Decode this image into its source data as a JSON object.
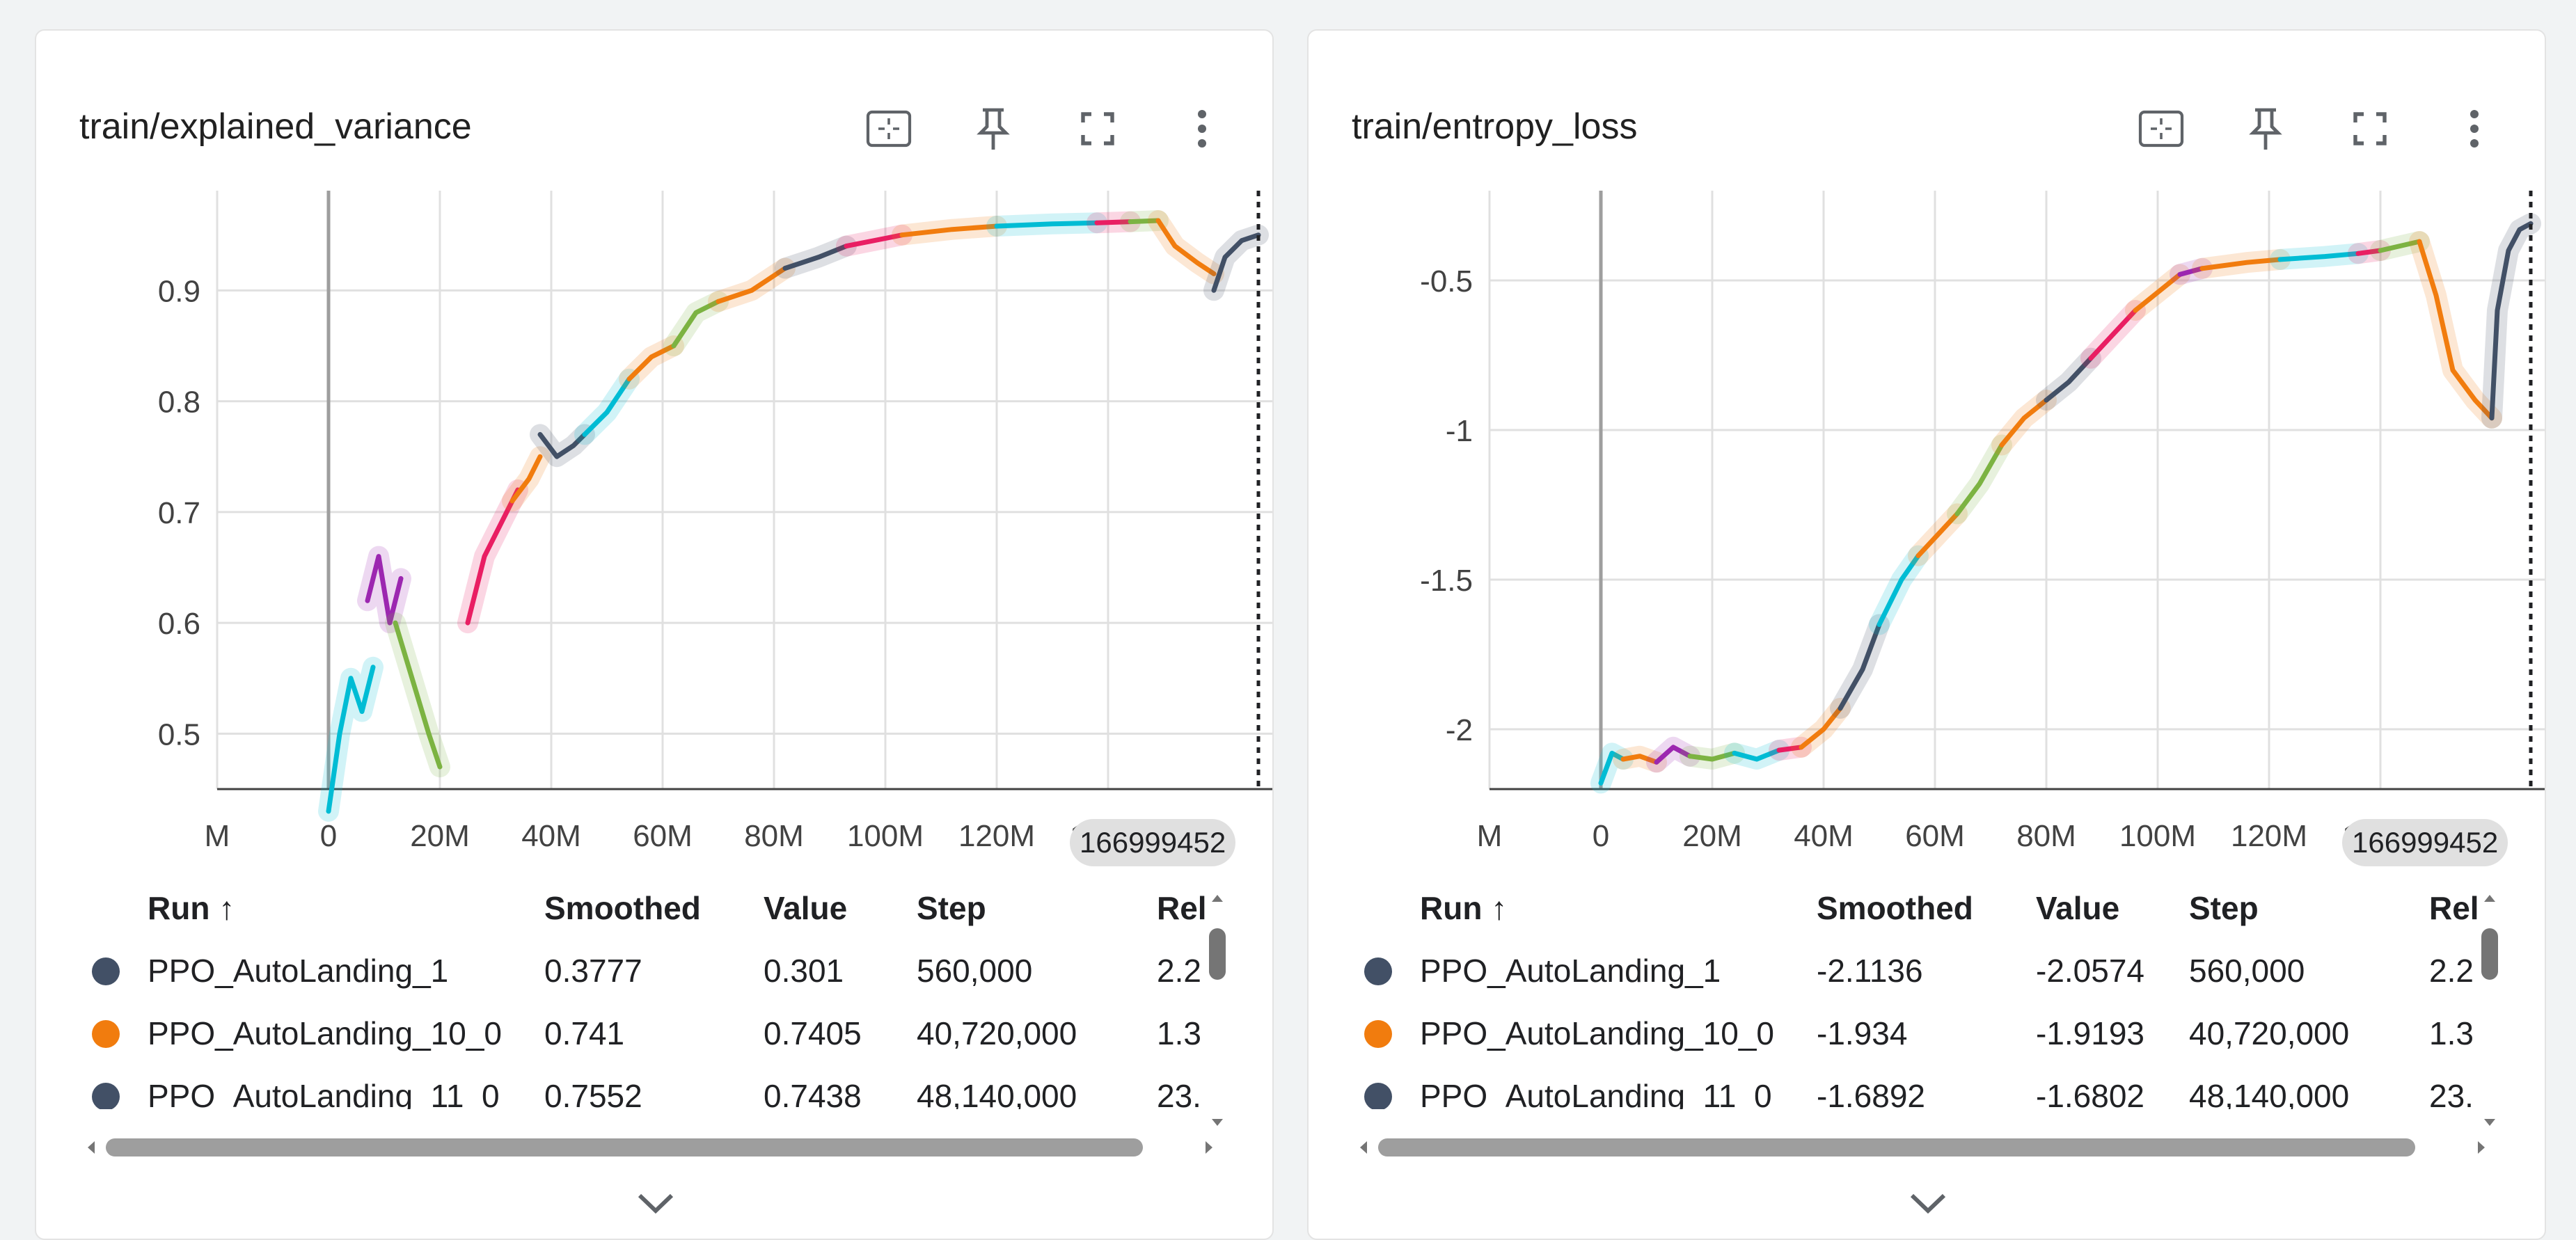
{
  "panels": [
    {
      "id": "left",
      "title": "train/explained_variance",
      "x_ticks": [
        {
          "v": -20,
          "label": "M"
        },
        {
          "v": 0,
          "label": "0"
        },
        {
          "v": 20,
          "label": "20M"
        },
        {
          "v": 40,
          "label": "40M"
        },
        {
          "v": 60,
          "label": "60M"
        },
        {
          "v": 80,
          "label": "80M"
        },
        {
          "v": 100,
          "label": "100M"
        },
        {
          "v": 120,
          "label": "120M"
        },
        {
          "v": 140,
          "label": "140M"
        }
      ],
      "y_ticks": [
        {
          "v": 0.5,
          "label": "0.5"
        },
        {
          "v": 0.6,
          "label": "0.6"
        },
        {
          "v": 0.7,
          "label": "0.7"
        },
        {
          "v": 0.8,
          "label": "0.8"
        },
        {
          "v": 0.9,
          "label": "0.9"
        }
      ],
      "cursor_step_label": "166999452",
      "legend": {
        "headers": {
          "run": "Run ↑",
          "smoothed": "Smoothed",
          "value": "Value",
          "step": "Step",
          "rel": "Rel"
        },
        "rows": [
          {
            "run": "PPO_AutoLanding_1",
            "smoothed": "0.3777",
            "value": "0.301",
            "step": "560,000",
            "rel": "2.2",
            "color": "#425066"
          },
          {
            "run": "PPO_AutoLanding_10_0",
            "smoothed": "0.741",
            "value": "0.7405",
            "step": "40,720,000",
            "rel": "1.3",
            "color": "#f17c0e"
          },
          {
            "run": "PPO_AutoLanding_11_0",
            "smoothed": "0.7552",
            "value": "0.7438",
            "step": "48,140,000",
            "rel": "23.",
            "color": "#425066"
          }
        ]
      }
    },
    {
      "id": "right",
      "title": "train/entropy_loss",
      "x_ticks": [
        {
          "v": -20,
          "label": "M"
        },
        {
          "v": 0,
          "label": "0"
        },
        {
          "v": 20,
          "label": "20M"
        },
        {
          "v": 40,
          "label": "40M"
        },
        {
          "v": 60,
          "label": "60M"
        },
        {
          "v": 80,
          "label": "80M"
        },
        {
          "v": 100,
          "label": "100M"
        },
        {
          "v": 120,
          "label": "120M"
        },
        {
          "v": 140,
          "label": "140M"
        }
      ],
      "y_ticks": [
        {
          "v": -2,
          "label": "-2"
        },
        {
          "v": -1.5,
          "label": "-1.5"
        },
        {
          "v": -1,
          "label": "-1"
        },
        {
          "v": -0.5,
          "label": "-0.5"
        }
      ],
      "cursor_step_label": "166999452",
      "legend": {
        "headers": {
          "run": "Run ↑",
          "smoothed": "Smoothed",
          "value": "Value",
          "step": "Step",
          "rel": "Rel"
        },
        "rows": [
          {
            "run": "PPO_AutoLanding_1",
            "smoothed": "-2.1136",
            "value": "-2.0574",
            "step": "560,000",
            "rel": "2.2",
            "color": "#425066"
          },
          {
            "run": "PPO_AutoLanding_10_0",
            "smoothed": "-1.934",
            "value": "-1.9193",
            "step": "40,720,000",
            "rel": "1.3",
            "color": "#f17c0e"
          },
          {
            "run": "PPO_AutoLanding_11_0",
            "smoothed": "-1.6892",
            "value": "-1.6802",
            "step": "48,140,000",
            "rel": "23.",
            "color": "#425066"
          }
        ]
      }
    }
  ],
  "chart_data": [
    {
      "type": "line",
      "title": "train/explained_variance",
      "xlabel": "",
      "ylabel": "",
      "xlim": [
        -20,
        170
      ],
      "ylim": [
        0.45,
        0.99
      ],
      "grid": true,
      "cursor_x": 166.999452,
      "series": [
        {
          "color": "#00bcd4",
          "x": [
            0,
            2,
            4,
            6,
            8
          ],
          "y": [
            0.43,
            0.5,
            0.55,
            0.52,
            0.56
          ]
        },
        {
          "color": "#9c27b0",
          "x": [
            7,
            9,
            11,
            13
          ],
          "y": [
            0.62,
            0.66,
            0.6,
            0.64
          ]
        },
        {
          "color": "#7cb342",
          "x": [
            12,
            15,
            18,
            20
          ],
          "y": [
            0.6,
            0.55,
            0.5,
            0.47
          ]
        },
        {
          "color": "#e91e63",
          "x": [
            25,
            28,
            31,
            34
          ],
          "y": [
            0.6,
            0.66,
            0.69,
            0.72
          ]
        },
        {
          "color": "#f17c0e",
          "x": [
            33,
            36,
            38
          ],
          "y": [
            0.71,
            0.73,
            0.75
          ]
        },
        {
          "color": "#425066",
          "x": [
            38,
            41,
            44,
            46
          ],
          "y": [
            0.77,
            0.75,
            0.76,
            0.77
          ]
        },
        {
          "color": "#00bcd4",
          "x": [
            46,
            50,
            54
          ],
          "y": [
            0.77,
            0.79,
            0.82
          ]
        },
        {
          "color": "#f17c0e",
          "x": [
            54,
            58,
            62
          ],
          "y": [
            0.82,
            0.84,
            0.85
          ]
        },
        {
          "color": "#7cb342",
          "x": [
            62,
            66,
            70
          ],
          "y": [
            0.85,
            0.88,
            0.89
          ]
        },
        {
          "color": "#f17c0e",
          "x": [
            70,
            76,
            82
          ],
          "y": [
            0.89,
            0.9,
            0.92
          ]
        },
        {
          "color": "#425066",
          "x": [
            82,
            88,
            93
          ],
          "y": [
            0.92,
            0.93,
            0.94
          ]
        },
        {
          "color": "#e91e63",
          "x": [
            93,
            98,
            103
          ],
          "y": [
            0.94,
            0.945,
            0.95
          ]
        },
        {
          "color": "#f17c0e",
          "x": [
            103,
            112,
            120
          ],
          "y": [
            0.95,
            0.955,
            0.958
          ]
        },
        {
          "color": "#00bcd4",
          "x": [
            120,
            130,
            138
          ],
          "y": [
            0.958,
            0.96,
            0.961
          ]
        },
        {
          "color": "#e91e63",
          "x": [
            138,
            144
          ],
          "y": [
            0.961,
            0.962
          ]
        },
        {
          "color": "#7cb342",
          "x": [
            144,
            149
          ],
          "y": [
            0.962,
            0.963
          ]
        },
        {
          "color": "#f17c0e",
          "x": [
            149,
            152,
            156,
            159
          ],
          "y": [
            0.963,
            0.94,
            0.925,
            0.915
          ]
        },
        {
          "color": "#425066",
          "x": [
            159,
            161,
            164,
            167
          ],
          "y": [
            0.9,
            0.93,
            0.945,
            0.95
          ]
        }
      ]
    },
    {
      "type": "line",
      "title": "train/entropy_loss",
      "xlabel": "",
      "ylabel": "",
      "xlim": [
        -20,
        170
      ],
      "ylim": [
        -2.2,
        -0.2
      ],
      "grid": true,
      "cursor_x": 166.999452,
      "series": [
        {
          "color": "#00bcd4",
          "x": [
            0,
            2,
            4
          ],
          "y": [
            -2.18,
            -2.08,
            -2.1
          ]
        },
        {
          "color": "#f17c0e",
          "x": [
            4,
            7,
            10
          ],
          "y": [
            -2.1,
            -2.09,
            -2.11
          ]
        },
        {
          "color": "#9c27b0",
          "x": [
            10,
            13,
            16
          ],
          "y": [
            -2.11,
            -2.06,
            -2.09
          ]
        },
        {
          "color": "#7cb342",
          "x": [
            16,
            20,
            24
          ],
          "y": [
            -2.09,
            -2.1,
            -2.08
          ]
        },
        {
          "color": "#00bcd4",
          "x": [
            24,
            28,
            32
          ],
          "y": [
            -2.08,
            -2.1,
            -2.07
          ]
        },
        {
          "color": "#e91e63",
          "x": [
            32,
            36
          ],
          "y": [
            -2.07,
            -2.06
          ]
        },
        {
          "color": "#f17c0e",
          "x": [
            36,
            40,
            43
          ],
          "y": [
            -2.06,
            -2.0,
            -1.93
          ]
        },
        {
          "color": "#425066",
          "x": [
            43,
            47,
            50
          ],
          "y": [
            -1.93,
            -1.8,
            -1.65
          ]
        },
        {
          "color": "#00bcd4",
          "x": [
            50,
            54,
            57
          ],
          "y": [
            -1.65,
            -1.5,
            -1.42
          ]
        },
        {
          "color": "#f17c0e",
          "x": [
            57,
            61,
            64
          ],
          "y": [
            -1.42,
            -1.34,
            -1.28
          ]
        },
        {
          "color": "#7cb342",
          "x": [
            64,
            68,
            72
          ],
          "y": [
            -1.28,
            -1.18,
            -1.05
          ]
        },
        {
          "color": "#f17c0e",
          "x": [
            72,
            76,
            80
          ],
          "y": [
            -1.05,
            -0.96,
            -0.9
          ]
        },
        {
          "color": "#425066",
          "x": [
            80,
            84,
            88
          ],
          "y": [
            -0.9,
            -0.84,
            -0.76
          ]
        },
        {
          "color": "#e91e63",
          "x": [
            88,
            92,
            96
          ],
          "y": [
            -0.76,
            -0.68,
            -0.6
          ]
        },
        {
          "color": "#f17c0e",
          "x": [
            96,
            100,
            104
          ],
          "y": [
            -0.6,
            -0.54,
            -0.48
          ]
        },
        {
          "color": "#9c27b0",
          "x": [
            104,
            108
          ],
          "y": [
            -0.48,
            -0.46
          ]
        },
        {
          "color": "#f17c0e",
          "x": [
            108,
            116,
            122
          ],
          "y": [
            -0.46,
            -0.44,
            -0.43
          ]
        },
        {
          "color": "#00bcd4",
          "x": [
            122,
            130,
            136
          ],
          "y": [
            -0.43,
            -0.42,
            -0.41
          ]
        },
        {
          "color": "#e91e63",
          "x": [
            136,
            140
          ],
          "y": [
            -0.41,
            -0.4
          ]
        },
        {
          "color": "#7cb342",
          "x": [
            140,
            147
          ],
          "y": [
            -0.4,
            -0.37
          ]
        },
        {
          "color": "#f17c0e",
          "x": [
            147,
            150,
            153,
            157,
            160
          ],
          "y": [
            -0.37,
            -0.55,
            -0.8,
            -0.9,
            -0.96
          ]
        },
        {
          "color": "#425066",
          "x": [
            160,
            161,
            163,
            165,
            167
          ],
          "y": [
            -0.96,
            -0.6,
            -0.4,
            -0.33,
            -0.31
          ]
        }
      ]
    }
  ]
}
